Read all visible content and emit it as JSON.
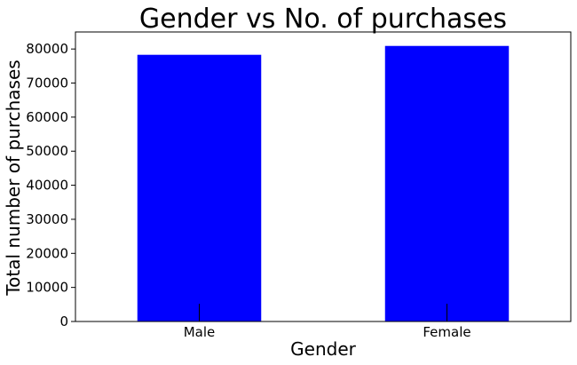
{
  "chart_data": {
    "type": "bar",
    "title": "Gender vs No. of purchases",
    "xlabel": "Gender",
    "ylabel": "Total number of purchases",
    "categories": [
      "Male",
      "Female"
    ],
    "values": [
      78300,
      80900
    ],
    "ylim": [
      0,
      85000
    ],
    "yticks": [
      0,
      10000,
      20000,
      30000,
      40000,
      50000,
      60000,
      70000,
      80000
    ],
    "ytick_labels": [
      "0",
      "10000",
      "20000",
      "30000",
      "40000",
      "50000",
      "60000",
      "70000",
      "80000"
    ],
    "bar_color": "#0000ff",
    "grid": false
  }
}
